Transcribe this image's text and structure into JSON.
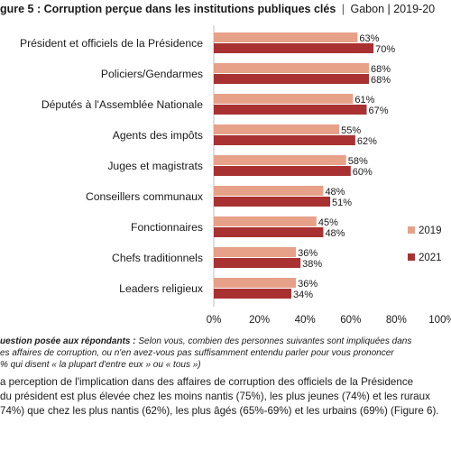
{
  "header": {
    "title_main": "gure 5 : Corruption perçue dans les institutions publiques clés",
    "separator": "|",
    "title_rest": "Gabon | 2019-20"
  },
  "chart_data": {
    "type": "bar",
    "orientation": "horizontal",
    "categories": [
      "Président et officiels de la Présidence",
      "Policiers/Gendarmes",
      "Députés à l'Assemblée Nationale",
      "Agents des impôts",
      "Juges et magistrats",
      "Conseillers communaux",
      "Fonctionnaires",
      "Chefs traditionnels",
      "Leaders religieux"
    ],
    "series": [
      {
        "name": "2019",
        "color": "#E8A189",
        "values": [
          63,
          68,
          61,
          55,
          58,
          48,
          45,
          36,
          36
        ]
      },
      {
        "name": "2021",
        "color": "#A93131",
        "values": [
          70,
          68,
          67,
          62,
          60,
          51,
          48,
          38,
          34
        ]
      }
    ],
    "value_suffix": "%",
    "xlim": [
      0,
      100
    ],
    "xticks": [
      "0%",
      "20%",
      "40%",
      "60%",
      "80%",
      "100%"
    ],
    "grid": false,
    "legend_position": "right"
  },
  "note": {
    "line1_bold": "uestion posée aux répondants :",
    "line1_rest": " Selon vous, combien des personnes suivantes sont impliquées dans",
    "line2": "es affaires de corruption, ou n'en avez-vous pas suffisamment entendu parler pour vous prononcer",
    "line3": "% qui disent « la plupart d'entre eux » ou « tous »)"
  },
  "body": {
    "line1": "a perception de l'implication dans des affaires de corruption des officiels de la Présidence",
    "line2": "du président est plus élevée chez les moins nantis (75%), les plus jeunes (74%) et les ruraux",
    "line3": "74%) que chez les plus nantis (62%), les plus âgés (65%-69%) et les urbains (69%) (Figure 6)."
  }
}
